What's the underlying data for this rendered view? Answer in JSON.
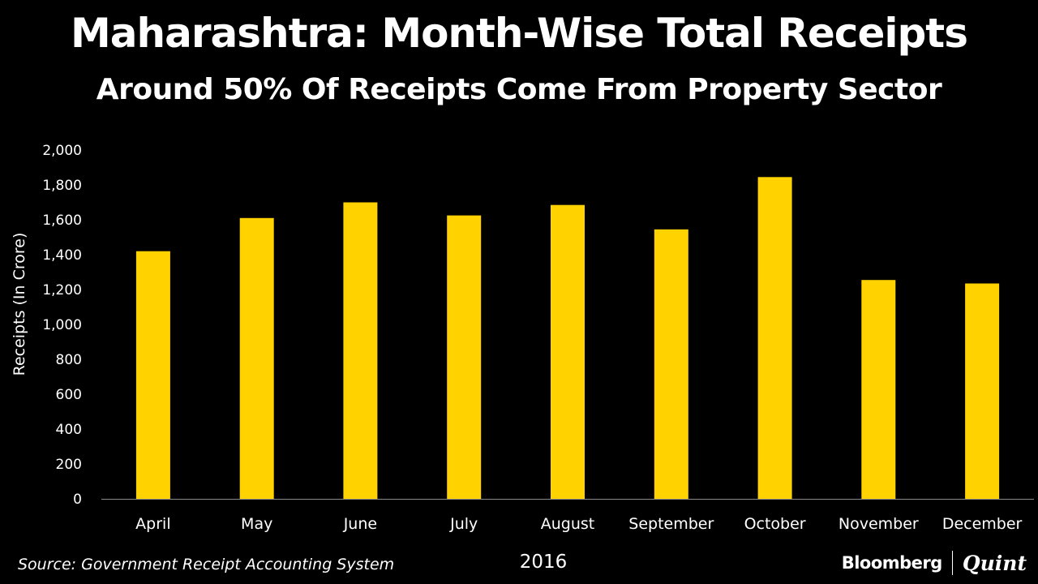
{
  "header": {
    "title": "Maharashtra: Month-Wise Total Receipts",
    "subtitle": "Around 50% Of Receipts Come From Property Sector"
  },
  "footer": {
    "source": "Source: Government Receipt Accounting System",
    "brand_left": "Bloomberg",
    "brand_right": "Quint"
  },
  "colors": {
    "background": "#000000",
    "bar": "#FFD200",
    "text": "#ffffff",
    "axis": "#8a8a8a"
  },
  "chart_data": {
    "type": "bar",
    "title": "Maharashtra: Month-Wise Total Receipts",
    "subtitle": "Around 50% Of Receipts Come From Property Sector",
    "categories": [
      "April",
      "May",
      "June",
      "July",
      "August",
      "September",
      "October",
      "November",
      "December"
    ],
    "values": [
      1420,
      1610,
      1700,
      1625,
      1685,
      1545,
      1845,
      1255,
      1235
    ],
    "xlabel": "2016",
    "ylabel": "Receipts (In Crore)",
    "ylim": [
      0,
      2000
    ],
    "yticks": [
      0,
      200,
      400,
      600,
      800,
      1000,
      1200,
      1400,
      1600,
      1800,
      2000
    ],
    "ytick_labels": [
      "0",
      "200",
      "400",
      "600",
      "800",
      "1,000",
      "1,200",
      "1,400",
      "1,600",
      "1,800",
      "2,000"
    ],
    "grid": false,
    "legend": "none"
  }
}
